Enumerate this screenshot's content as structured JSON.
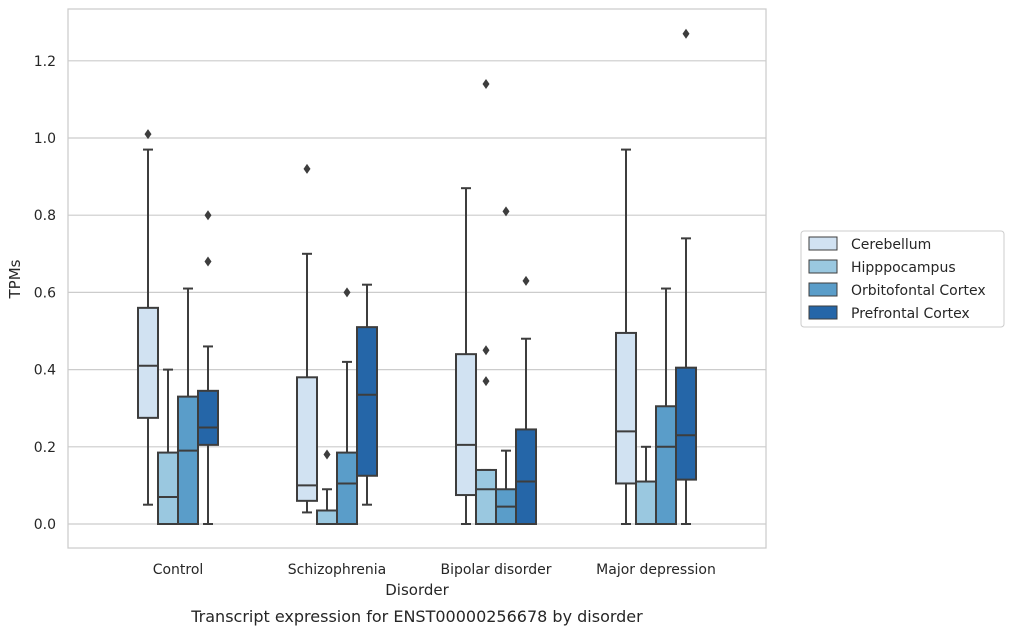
{
  "chart_data": {
    "type": "box",
    "title": "",
    "caption": "Transcript expression for ENST00000256678 by disorder",
    "xlabel": "Disorder",
    "ylabel": "TPMs",
    "ylim": [
      -0.062,
      1.34
    ],
    "yticks": [
      0.0,
      0.2,
      0.4,
      0.6,
      0.8,
      1.0,
      1.2
    ],
    "ytick_labels": [
      "0.0",
      "0.2",
      "0.4",
      "0.6",
      "0.8",
      "1.0",
      "1.2"
    ],
    "grid": "horizontal",
    "legend_position": "right",
    "categories": [
      "Control",
      "Schizophrenia",
      "Bipolar disorder",
      "Major depression"
    ],
    "series": [
      {
        "name": "Cerebellum",
        "color": "#d1e2f2",
        "boxes": [
          {
            "whislo": 0.05,
            "q1": 0.275,
            "med": 0.41,
            "q3": 0.56,
            "whishi": 0.97,
            "fliers": [
              1.01
            ]
          },
          {
            "whislo": 0.03,
            "q1": 0.06,
            "med": 0.1,
            "q3": 0.38,
            "whishi": 0.7,
            "fliers": [
              0.92
            ]
          },
          {
            "whislo": 0.0,
            "q1": 0.075,
            "med": 0.205,
            "q3": 0.44,
            "whishi": 0.87,
            "fliers": []
          },
          {
            "whislo": 0.0,
            "q1": 0.105,
            "med": 0.24,
            "q3": 0.495,
            "whishi": 0.97,
            "fliers": []
          }
        ]
      },
      {
        "name": "Hipppocampus",
        "color": "#9ac8e0",
        "boxes": [
          {
            "whislo": 0.0,
            "q1": 0.0,
            "med": 0.07,
            "q3": 0.185,
            "whishi": 0.4,
            "fliers": []
          },
          {
            "whislo": 0.0,
            "q1": 0.0,
            "med": 0.0,
            "q3": 0.035,
            "whishi": 0.09,
            "fliers": [
              0.18
            ]
          },
          {
            "whislo": 0.0,
            "q1": 0.0,
            "med": 0.09,
            "q3": 0.14,
            "whishi": 0.14,
            "fliers": [
              0.37,
              0.45,
              1.14
            ]
          },
          {
            "whislo": 0.0,
            "q1": 0.0,
            "med": 0.0,
            "q3": 0.11,
            "whishi": 0.2,
            "fliers": []
          }
        ]
      },
      {
        "name": "Orbitofontal Cortex",
        "color": "#5a9dc9",
        "boxes": [
          {
            "whislo": 0.0,
            "q1": 0.0,
            "med": 0.19,
            "q3": 0.33,
            "whishi": 0.61,
            "fliers": []
          },
          {
            "whislo": 0.0,
            "q1": 0.0,
            "med": 0.105,
            "q3": 0.185,
            "whishi": 0.42,
            "fliers": [
              0.6
            ]
          },
          {
            "whislo": 0.0,
            "q1": 0.0,
            "med": 0.045,
            "q3": 0.09,
            "whishi": 0.19,
            "fliers": [
              0.81
            ]
          },
          {
            "whislo": 0.0,
            "q1": 0.0,
            "med": 0.2,
            "q3": 0.305,
            "whishi": 0.61,
            "fliers": []
          }
        ]
      },
      {
        "name": "Prefrontal Cortex",
        "color": "#2566a8",
        "boxes": [
          {
            "whislo": 0.0,
            "q1": 0.205,
            "med": 0.25,
            "q3": 0.345,
            "whishi": 0.46,
            "fliers": [
              0.68,
              0.8
            ]
          },
          {
            "whislo": 0.05,
            "q1": 0.125,
            "med": 0.335,
            "q3": 0.51,
            "whishi": 0.62,
            "fliers": []
          },
          {
            "whislo": 0.0,
            "q1": 0.0,
            "med": 0.11,
            "q3": 0.245,
            "whishi": 0.48,
            "fliers": [
              0.63
            ]
          },
          {
            "whislo": 0.0,
            "q1": 0.115,
            "med": 0.23,
            "q3": 0.405,
            "whishi": 0.74,
            "fliers": [
              1.27
            ]
          }
        ]
      }
    ]
  }
}
